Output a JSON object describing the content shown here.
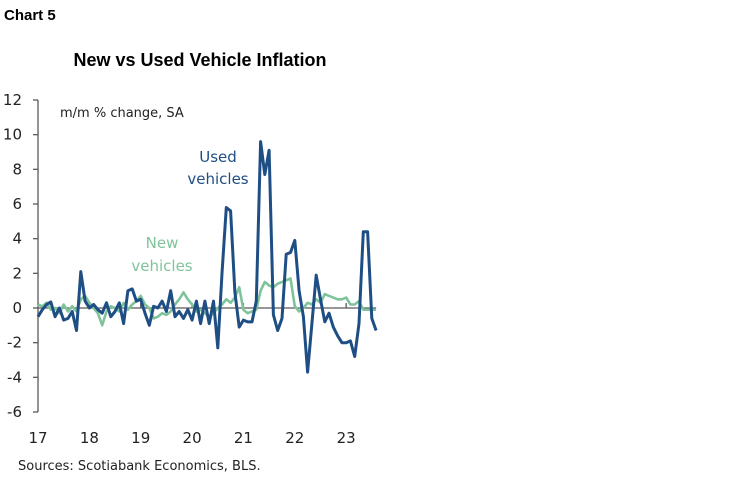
{
  "chart_label": "Chart 5",
  "source": "Sources: Scotiabank Economics, BLS.",
  "chart_data": {
    "type": "line",
    "title": "New vs Used Vehicle Inflation",
    "subtitle": "m/m % change, SA",
    "xlabel": "",
    "ylabel": "",
    "ylim": [
      -6,
      12
    ],
    "yticks": [
      -6,
      -4,
      -2,
      0,
      2,
      4,
      6,
      8,
      10,
      12
    ],
    "xtick_labels": [
      "17",
      "18",
      "19",
      "20",
      "21",
      "22",
      "23"
    ],
    "x_start": "2017-01",
    "x_frequency": "monthly",
    "grid": false,
    "series": [
      {
        "name": "Used vehicles",
        "label_lines": [
          "Used",
          "vehicles"
        ],
        "color": "#1f4e85",
        "values": [
          -0.5,
          -0.1,
          0.2,
          0.35,
          -0.5,
          0.0,
          -0.7,
          -0.6,
          -0.2,
          -1.3,
          2.1,
          0.4,
          0.0,
          0.2,
          -0.1,
          -0.3,
          0.3,
          -0.5,
          -0.2,
          0.3,
          -0.9,
          1.0,
          1.1,
          0.4,
          0.5,
          -0.3,
          -1.0,
          0.1,
          0.0,
          0.4,
          -0.2,
          1.0,
          -0.5,
          -0.2,
          -0.6,
          -0.1,
          -0.7,
          0.4,
          -0.9,
          0.4,
          -0.9,
          0.4,
          -2.3,
          2.0,
          5.8,
          5.6,
          0.9,
          -1.1,
          -0.7,
          -0.8,
          -0.8,
          0.4,
          9.6,
          7.7,
          9.1,
          -0.4,
          -1.3,
          -0.6,
          3.1,
          3.2,
          3.9,
          1.0,
          -0.5,
          -3.7,
          -0.9,
          1.9,
          0.5,
          -0.8,
          -0.3,
          -1.1,
          -1.6,
          -2.0,
          -2.0,
          -1.9,
          -2.8,
          -0.9,
          4.4,
          4.4,
          -0.6,
          -1.3
        ]
      },
      {
        "name": "New vehicles",
        "label_lines": [
          "New",
          "vehicles"
        ],
        "color": "#7fc39a",
        "values": [
          0.2,
          0.1,
          0.3,
          -0.1,
          0.0,
          -0.3,
          0.2,
          -0.2,
          0.1,
          -0.2,
          0.5,
          0.7,
          0.3,
          0.0,
          -0.3,
          -1.0,
          -0.2,
          0.1,
          0.0,
          -0.2,
          0.3,
          -0.1,
          0.2,
          0.4,
          0.7,
          0.2,
          0.0,
          -0.6,
          -0.5,
          -0.3,
          -0.4,
          -0.2,
          0.2,
          0.5,
          0.9,
          0.5,
          0.2,
          -0.2,
          -0.1,
          -0.3,
          -0.5,
          -0.3,
          0.0,
          0.2,
          0.5,
          0.3,
          0.6,
          1.2,
          -0.1,
          -0.3,
          -0.2,
          -0.1,
          1.0,
          1.5,
          1.3,
          1.2,
          1.4,
          1.5,
          1.6,
          1.7,
          0.1,
          -0.2,
          0.0,
          0.3,
          0.2,
          0.5,
          0.3,
          0.8,
          0.7,
          0.6,
          0.5,
          0.5,
          0.6,
          0.2,
          0.2,
          0.4,
          -0.1,
          -0.1,
          -0.1,
          -0.1
        ]
      }
    ]
  }
}
